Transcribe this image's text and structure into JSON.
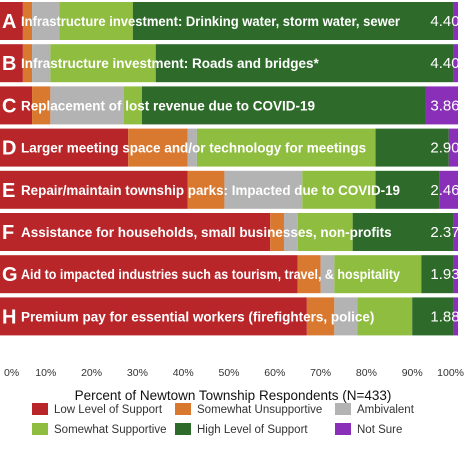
{
  "colors": {
    "Low Level of Support": "#b8262a",
    "Somewhat Unsupportive": "#d9782f",
    "Ambivalent": "#b3b3b3",
    "Somewhat Supportive": "#8fbd3f",
    "High Level of Support": "#2e6b2a",
    "Not Sure": "#8a2fb8"
  },
  "chart_data": {
    "type": "bar",
    "orientation": "horizontal",
    "stacked": true,
    "xlabel": "Percent of Newtown Township Respondents (N=433)",
    "xlim": [
      0,
      100
    ],
    "xticks": [
      "0%",
      "10%",
      "20%",
      "30%",
      "40%",
      "50%",
      "60%",
      "70%",
      "80%",
      "90%",
      "100%"
    ],
    "legend_position": "bottom",
    "rows": [
      {
        "letter": "A",
        "label": "Infrastructure investment: Drinking water, storm water, sewer",
        "score": "4.40"
      },
      {
        "letter": "B",
        "label": "Infrastructure investment: Roads and bridges*",
        "score": "4.40"
      },
      {
        "letter": "C",
        "label": "Replacement of lost revenue due to COVID-19",
        "score": "3.86"
      },
      {
        "letter": "D",
        "label": "Larger meeting space and/or technology for meetings",
        "score": "2.90"
      },
      {
        "letter": "E",
        "label": "Repair/maintain township parks: Impacted due to COVID-19",
        "score": "2.46"
      },
      {
        "letter": "F",
        "label": "Assistance for households, small businesses, non-profits",
        "score": "2.37"
      },
      {
        "letter": "G",
        "label": "Aid to impacted industries such as tourism, travel, & hospitality",
        "score": "1.93"
      },
      {
        "letter": "H",
        "label": "Premium pay for essential workers (firefighters, police)",
        "score": "1.88"
      }
    ],
    "series": [
      {
        "name": "Low Level of Support",
        "values": [
          5,
          5,
          7,
          28,
          41,
          59,
          65,
          67
        ]
      },
      {
        "name": "Somewhat Unsupportive",
        "values": [
          2,
          2,
          4,
          13,
          8,
          3,
          5,
          6
        ]
      },
      {
        "name": "Ambivalent",
        "values": [
          6,
          4,
          16,
          2,
          17,
          3,
          3,
          5
        ]
      },
      {
        "name": "Somewhat Supportive",
        "values": [
          16,
          23,
          4,
          39,
          16,
          12,
          19,
          12
        ]
      },
      {
        "name": "High Level of Support",
        "values": [
          70,
          65,
          62,
          16,
          14,
          22,
          7,
          9
        ]
      },
      {
        "name": "Not Sure",
        "values": [
          1,
          1,
          7,
          2,
          4,
          1,
          1,
          1
        ]
      }
    ]
  }
}
